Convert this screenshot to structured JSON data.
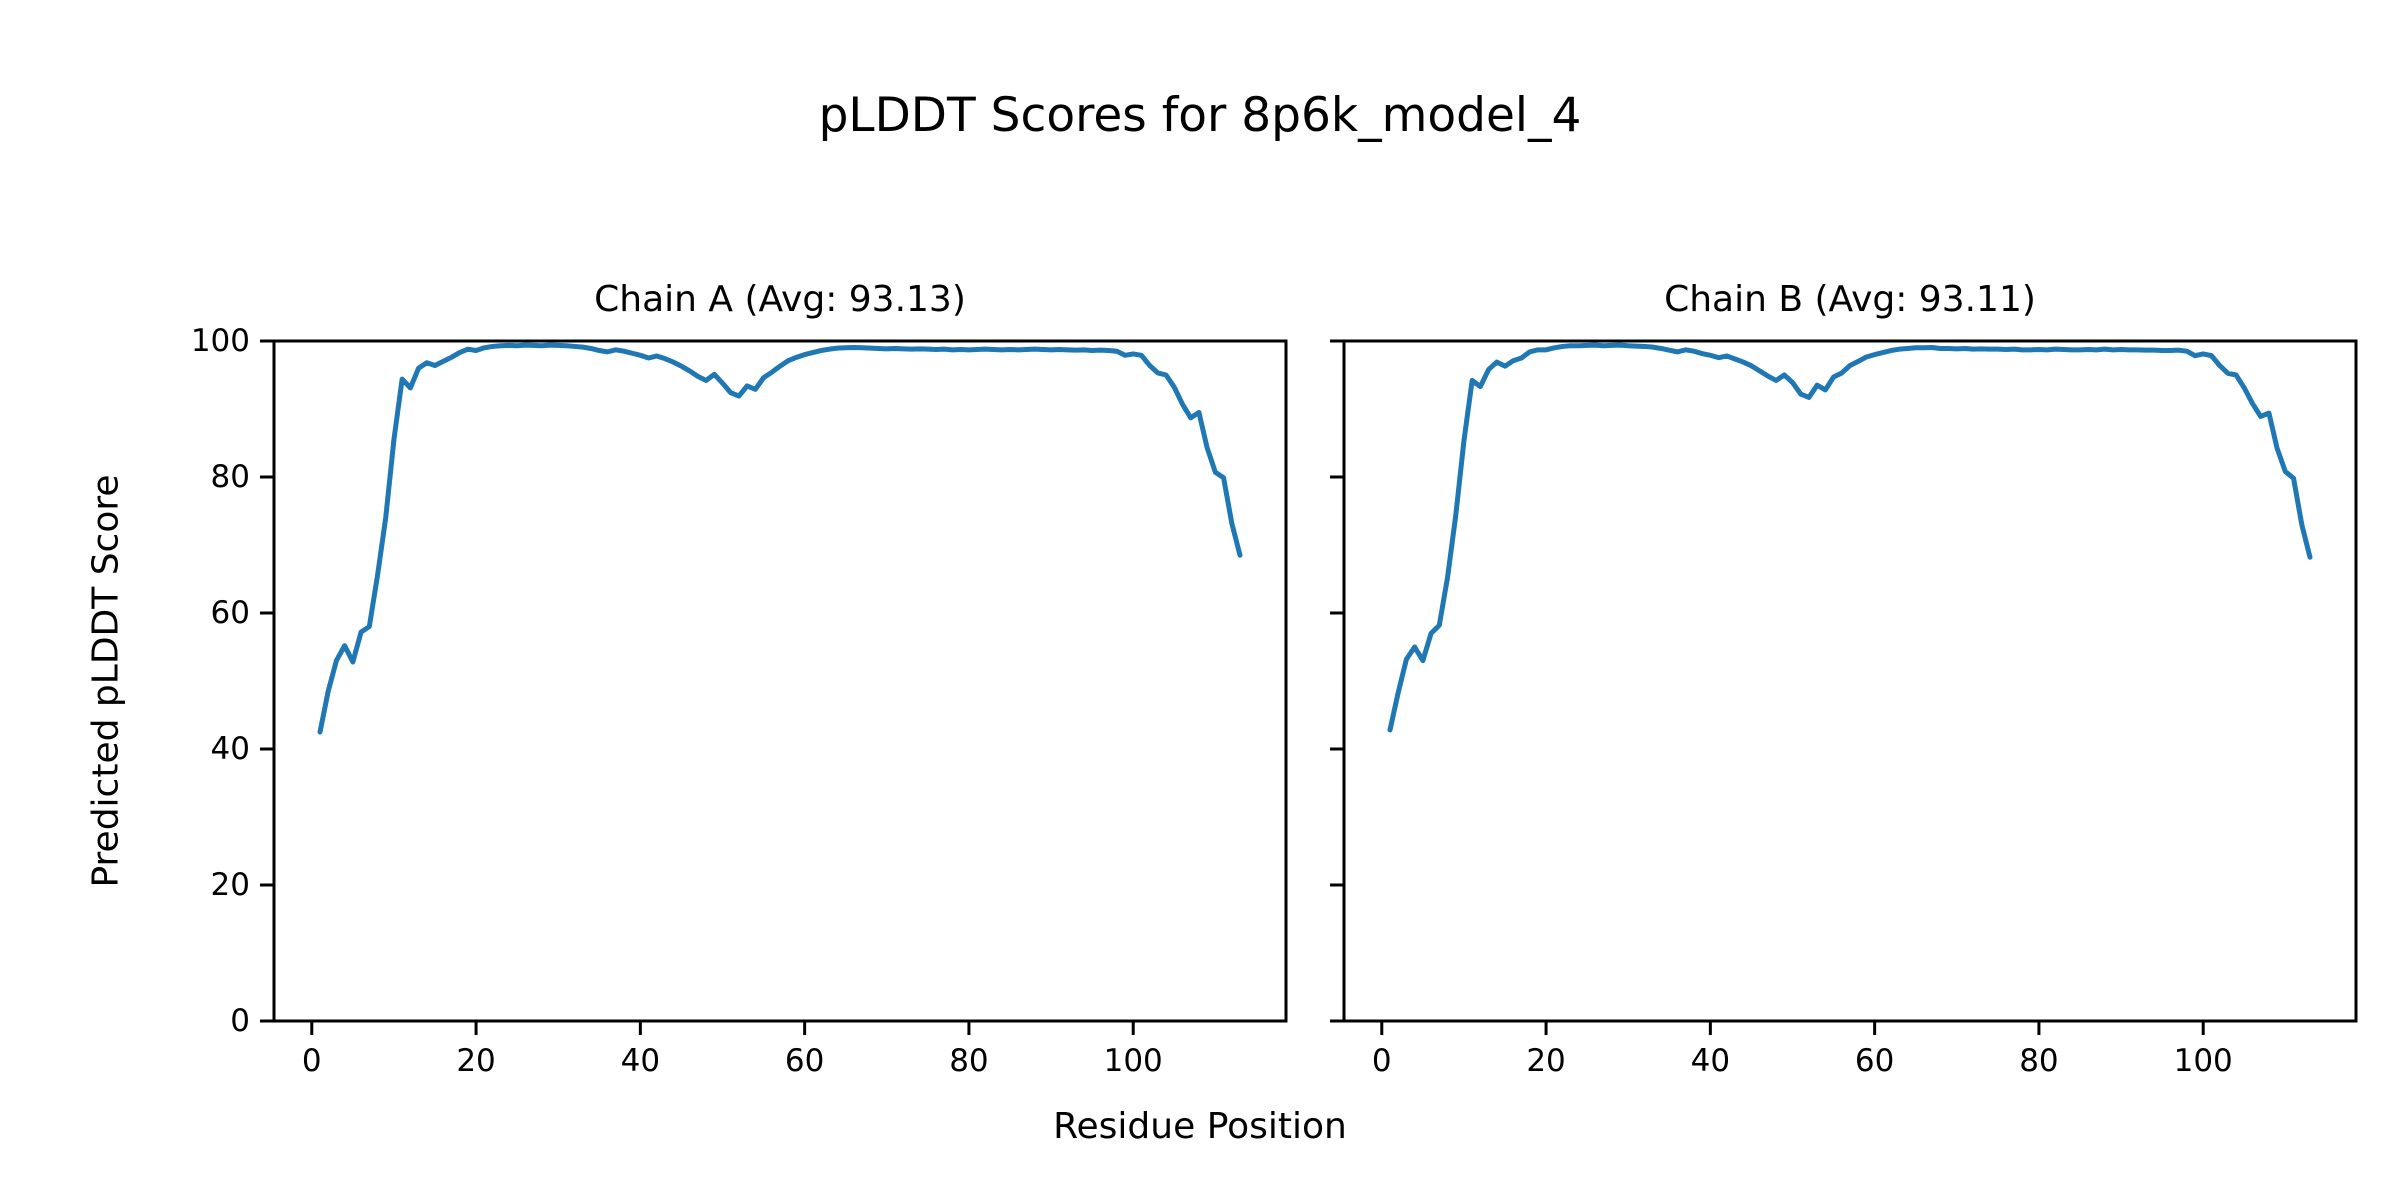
{
  "figure": {
    "title": "pLDDT Scores for 8p6k_model_4",
    "xlabel": "Residue Position",
    "ylabel": "Predicted pLDDT Score",
    "background_color": "#ffffff",
    "text_color": "#000000",
    "spine_color": "#000000"
  },
  "chart_data": [
    {
      "type": "line",
      "title": "Chain A (Avg: 93.13)",
      "avg": 93.13,
      "line_color": "#1f77b4",
      "grid": false,
      "x_start": 1,
      "x_step": 1,
      "xlim": [
        -4.6,
        118.6
      ],
      "ylim": [
        0,
        100
      ],
      "x_ticks": [
        0,
        20,
        40,
        60,
        80,
        100
      ],
      "y_ticks": [
        0,
        20,
        40,
        60,
        80,
        100
      ],
      "show_y_tick_labels": true,
      "values": [
        42.5,
        48.5,
        53.0,
        55.2,
        52.8,
        57.2,
        58.0,
        65.5,
        74.0,
        85.5,
        94.4,
        93.1,
        96.0,
        96.8,
        96.4,
        97.0,
        97.6,
        98.3,
        98.8,
        98.6,
        99.0,
        99.2,
        99.3,
        99.35,
        99.3,
        99.4,
        99.35,
        99.3,
        99.4,
        99.35,
        99.3,
        99.2,
        99.1,
        98.9,
        98.6,
        98.4,
        98.7,
        98.5,
        98.2,
        97.9,
        97.5,
        97.8,
        97.4,
        96.9,
        96.3,
        95.6,
        94.8,
        94.2,
        95.1,
        93.8,
        92.4,
        91.9,
        93.4,
        92.9,
        94.6,
        95.4,
        96.3,
        97.1,
        97.6,
        98.0,
        98.3,
        98.6,
        98.8,
        98.95,
        99.0,
        99.05,
        99.0,
        98.95,
        98.9,
        98.85,
        98.9,
        98.85,
        98.8,
        98.85,
        98.8,
        98.75,
        98.8,
        98.7,
        98.75,
        98.7,
        98.75,
        98.8,
        98.75,
        98.7,
        98.75,
        98.7,
        98.75,
        98.8,
        98.75,
        98.7,
        98.75,
        98.7,
        98.65,
        98.7,
        98.6,
        98.65,
        98.6,
        98.5,
        97.9,
        98.1,
        97.9,
        96.4,
        95.3,
        95.0,
        93.2,
        90.7,
        88.7,
        89.5,
        84.3,
        80.7,
        79.9,
        73.2,
        68.5
      ]
    },
    {
      "type": "line",
      "title": "Chain B (Avg: 93.11)",
      "avg": 93.11,
      "line_color": "#1f77b4",
      "grid": false,
      "x_start": 1,
      "x_step": 1,
      "xlim": [
        -4.6,
        118.6
      ],
      "ylim": [
        0,
        100
      ],
      "x_ticks": [
        0,
        20,
        40,
        60,
        80,
        100
      ],
      "y_ticks": [
        0,
        20,
        40,
        60,
        80,
        100
      ],
      "show_y_tick_labels": false,
      "values": [
        42.8,
        48.3,
        53.2,
        55.0,
        53.0,
        57.0,
        58.2,
        65.2,
        74.3,
        85.3,
        94.2,
        93.3,
        95.8,
        96.9,
        96.3,
        97.1,
        97.5,
        98.4,
        98.7,
        98.7,
        99.0,
        99.2,
        99.3,
        99.3,
        99.35,
        99.4,
        99.3,
        99.35,
        99.4,
        99.3,
        99.25,
        99.2,
        99.1,
        98.9,
        98.65,
        98.4,
        98.7,
        98.5,
        98.15,
        97.9,
        97.55,
        97.8,
        97.35,
        96.9,
        96.35,
        95.6,
        94.85,
        94.2,
        95.0,
        93.9,
        92.2,
        91.7,
        93.5,
        92.8,
        94.7,
        95.3,
        96.4,
        97.0,
        97.65,
        98.0,
        98.3,
        98.6,
        98.8,
        98.9,
        99.0,
        99.0,
        99.05,
        98.9,
        98.9,
        98.85,
        98.9,
        98.8,
        98.85,
        98.8,
        98.8,
        98.75,
        98.8,
        98.7,
        98.7,
        98.75,
        98.7,
        98.8,
        98.75,
        98.7,
        98.7,
        98.75,
        98.7,
        98.8,
        98.7,
        98.75,
        98.7,
        98.7,
        98.65,
        98.65,
        98.6,
        98.6,
        98.65,
        98.5,
        97.85,
        98.1,
        97.85,
        96.4,
        95.25,
        95.0,
        93.1,
        90.8,
        88.9,
        89.4,
        84.2,
        80.8,
        79.8,
        73.0,
        68.2
      ]
    }
  ]
}
